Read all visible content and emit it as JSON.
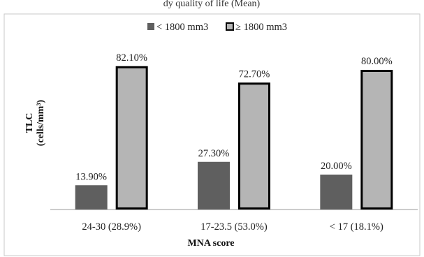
{
  "caption_fragment": "dy quality of life (Mean)",
  "chart_data": {
    "type": "bar",
    "categories": [
      "24-30 (28.9%)",
      "17-23.5 (53.0%)",
      "< 17 (18.1%)"
    ],
    "series": [
      {
        "name": "< 1800 mm3",
        "values": [
          13.9,
          27.3,
          20.0
        ],
        "labels": [
          "13.90%",
          "27.30%",
          "20.00%"
        ],
        "color": "#5f5f5f",
        "outline": "#5f5f5f"
      },
      {
        "name": "≥ 1800 mm3",
        "values": [
          82.1,
          72.7,
          80.0
        ],
        "labels": [
          "82.10%",
          "72.70%",
          "80.00%"
        ],
        "color": "#b5b5b5",
        "outline": "#000000"
      }
    ],
    "xlabel": "MNA score",
    "ylabel_line1": "TLC",
    "ylabel_line2": "(cells/mm³)",
    "ylim": [
      0,
      100
    ],
    "legend_position": "top-center",
    "grid": false
  }
}
